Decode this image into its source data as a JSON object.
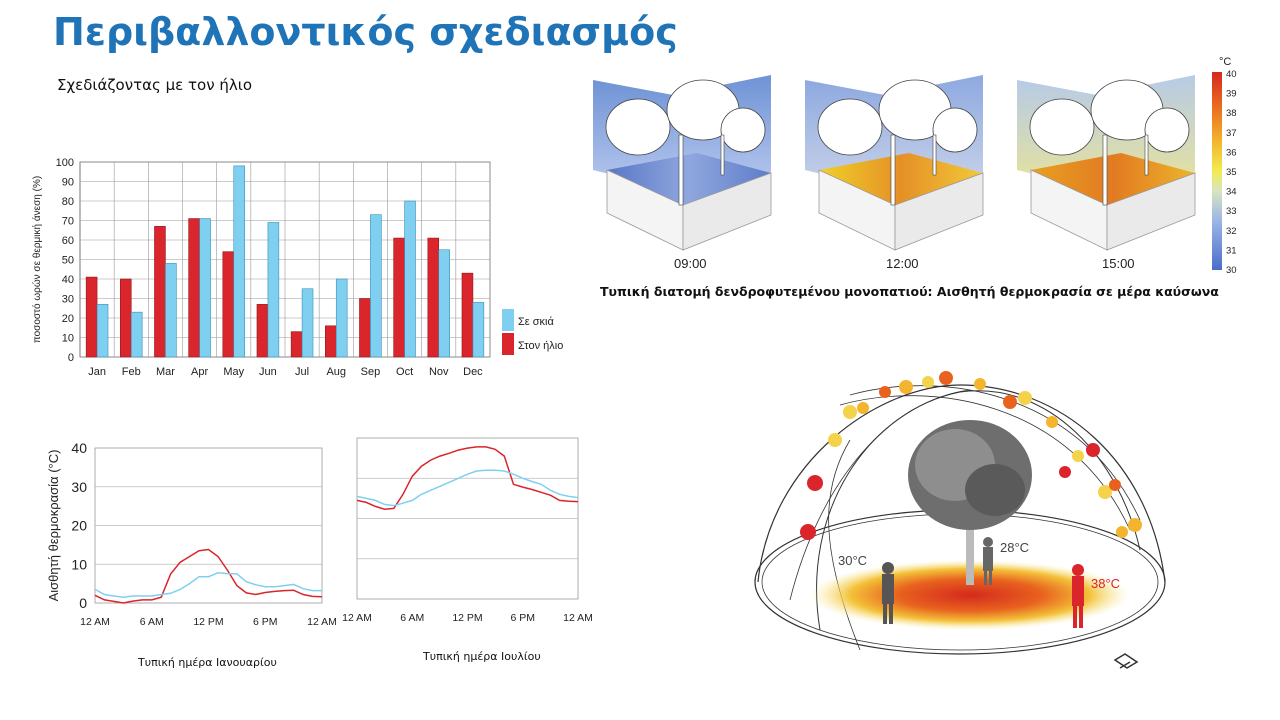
{
  "title": "Περιβαλλοντικός σχεδιασμός",
  "subtitle": "Σχεδιάζοντας με τον ήλιο",
  "colors": {
    "title": "#1f74b8",
    "shade": "#7fd0f0",
    "sun": "#d9252b",
    "heat_low": "#4a6cc9",
    "heat_high": "#d42a1e"
  },
  "cross_section": {
    "caption": "Τυπική διατομή δενδροφυτεμένου μονοπατιού: Αισθητή θερμοκρασία σε μέρα καύσωνα",
    "times": [
      "09:00",
      "12:00",
      "15:00"
    ],
    "colorbar": {
      "unit": "°C",
      "ticks": [
        40,
        39,
        38,
        37,
        36,
        35,
        34,
        33,
        32,
        31,
        30
      ]
    }
  },
  "dome": {
    "labels": [
      {
        "text": "30°C",
        "color": "#444444"
      },
      {
        "text": "28°C",
        "color": "#444444"
      },
      {
        "text": "38°C",
        "color": "#d9252b"
      }
    ]
  },
  "chart_data": [
    {
      "type": "bar",
      "title": "",
      "ylabel": "ποσοστό ωρών σε θερμική άνεση (%)",
      "xlabel": "",
      "ylim": [
        0,
        100
      ],
      "yticks": [
        0,
        10,
        20,
        30,
        40,
        50,
        60,
        70,
        80,
        90,
        100
      ],
      "grid": true,
      "legend": "right",
      "categories": [
        "Jan",
        "Feb",
        "Mar",
        "Apr",
        "May",
        "Jun",
        "Jul",
        "Aug",
        "Sep",
        "Oct",
        "Nov",
        "Dec"
      ],
      "series": [
        {
          "name": "Στον ήλιο",
          "color": "#d9252b",
          "values": [
            41,
            40,
            67,
            71,
            54,
            27,
            13,
            16,
            30,
            61,
            61,
            43
          ]
        },
        {
          "name": "Σε σκιά",
          "color": "#7fd0f0",
          "values": [
            27,
            23,
            48,
            71,
            98,
            69,
            35,
            40,
            73,
            80,
            55,
            28
          ]
        }
      ]
    },
    {
      "type": "line",
      "title": "Τυπική ημέρα Ιανουαρίου",
      "ylabel": "Αισθητή θερμοκρασία (°C)",
      "ylim": [
        0,
        40
      ],
      "yticks": [
        0,
        10,
        20,
        30,
        40
      ],
      "xticks": [
        "12 AM",
        "6 AM",
        "12 PM",
        "6 PM",
        "12 AM"
      ],
      "x": [
        0,
        1,
        2,
        3,
        4,
        5,
        6,
        7,
        8,
        9,
        10,
        11,
        12,
        13,
        14,
        15,
        16,
        17,
        18,
        19,
        20,
        21,
        22,
        23,
        24
      ],
      "series": [
        {
          "name": "",
          "color": "#d9252b",
          "values": [
            2,
            0.8,
            0.4,
            0,
            0.5,
            0.8,
            0.8,
            1.5,
            7.5,
            10.5,
            12,
            13.5,
            13.8,
            12,
            8.5,
            4.5,
            2.6,
            2.2,
            2.7,
            3,
            3.2,
            3.3,
            2.2,
            1.7,
            1.6
          ]
        },
        {
          "name": "",
          "color": "#7fd0f0",
          "values": [
            3.5,
            2.2,
            1.8,
            1.5,
            1.8,
            1.8,
            1.8,
            2.2,
            2.5,
            3.5,
            5,
            6.8,
            6.8,
            7.8,
            7.6,
            7.5,
            5.5,
            4.7,
            4.2,
            4.2,
            4.5,
            4.8,
            3.7,
            3.2,
            3.2
          ]
        }
      ]
    },
    {
      "type": "line",
      "title": "Τυπική ημέρα Ιουλίου",
      "ylim": [
        0,
        40
      ],
      "xticks": [
        "12 AM",
        "6 AM",
        "12 PM",
        "6 PM",
        "12 AM"
      ],
      "x": [
        0,
        1,
        2,
        3,
        4,
        5,
        6,
        7,
        8,
        9,
        10,
        11,
        12,
        13,
        14,
        15,
        16,
        17,
        18,
        19,
        20,
        21,
        22,
        23,
        24
      ],
      "series": [
        {
          "name": "",
          "color": "#d9252b",
          "values": [
            24.5,
            24,
            23,
            22.3,
            22.5,
            26,
            30.5,
            33,
            34.5,
            35.5,
            36.2,
            37,
            37.5,
            37.8,
            37.8,
            37.2,
            35.5,
            28.5,
            27.8,
            27.2,
            26.5,
            25.8,
            24.5,
            24.3,
            24.2
          ]
        },
        {
          "name": "",
          "color": "#7fd0f0",
          "values": [
            25.5,
            25,
            24.5,
            23.5,
            23.2,
            23.8,
            24.5,
            26,
            27,
            28,
            29,
            30,
            31,
            31.8,
            32,
            32,
            31.8,
            31,
            30,
            29.2,
            28.5,
            27,
            26,
            25.5,
            25.2
          ]
        }
      ]
    }
  ]
}
